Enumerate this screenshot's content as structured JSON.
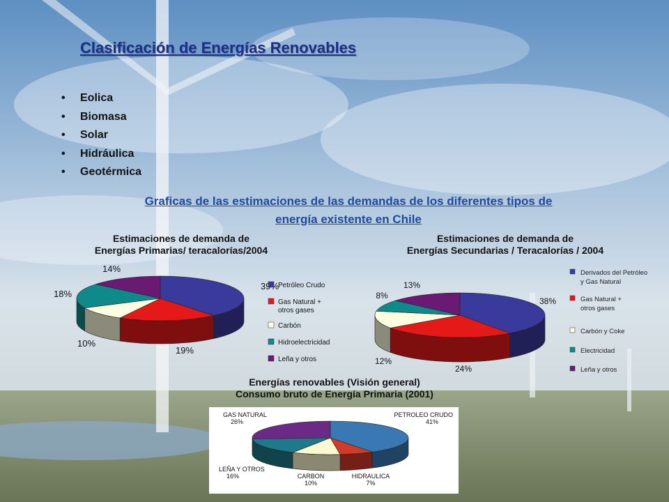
{
  "title": "Clasificación de Energías Renovables",
  "bullets": [
    "Eolica",
    "Biomasa",
    "Solar",
    "Hidráulica",
    "Geotérmica"
  ],
  "subtitle_line1": "Graficas de las estimaciones de las demandas de los diferentes tipos de",
  "subtitle_line2": "energía existente en Chile",
  "colors": {
    "title": "#1a2f8a",
    "subtitle": "#1f4aa0"
  },
  "chart_data": [
    {
      "type": "pie",
      "title_line1": "Estimaciones de demanda de",
      "title_line2": "Energías Primarias/ teracalorías/2004",
      "legend_placement": "right",
      "slices": [
        {
          "name": "Petróleo Crudo",
          "value": 39,
          "label": "39%",
          "color": "#3a3a9c"
        },
        {
          "name": "Gas Natural + otros gases",
          "value": 19,
          "label": "19%",
          "color": "#e61919"
        },
        {
          "name": "Carbón",
          "value": 10,
          "label": "10%",
          "color": "#fdfde0"
        },
        {
          "name": "Hidroelectricidad",
          "value": 18,
          "label": "18%",
          "color": "#0e8a8a"
        },
        {
          "name": "Leña y otros",
          "value": 14,
          "label": "14%",
          "color": "#6a1a72"
        }
      ]
    },
    {
      "type": "pie",
      "title_line1": "Estimaciones de demanda de",
      "title_line2": "Energías Secundarias / Teracalorías / 2004",
      "legend_placement": "right",
      "slices": [
        {
          "name": "Derivados del Petróleo y Gas Natural",
          "value": 38,
          "label": "38%",
          "color": "#3a3a9c"
        },
        {
          "name": "Gas Natural + otros gases",
          "value": 24,
          "label": "24%",
          "color": "#e61919"
        },
        {
          "name": "Carbón y Coke",
          "value": 12,
          "label": "12%",
          "color": "#fdfde0"
        },
        {
          "name": "Electricidad",
          "value": 8,
          "label": "8%",
          "color": "#0e8a8a"
        },
        {
          "name": "Leña y otros",
          "value": 13,
          "label": "13%",
          "color": "#6a1a72"
        }
      ]
    },
    {
      "type": "pie",
      "title_line1": "Energías renovables (Visión general)",
      "title_line2": "Consumo bruto de Energía Primaria (2001)",
      "slices": [
        {
          "name": "PETROLEO CRUDO",
          "value": 41,
          "label": "41%",
          "color": "#3a78b4"
        },
        {
          "name": "HIDRAULICA",
          "value": 7,
          "label": "7%",
          "color": "#d23a2a"
        },
        {
          "name": "CARBON",
          "value": 10,
          "label": "10%",
          "color": "#fcf8d0"
        },
        {
          "name": "LEÑA Y OTROS",
          "value": 16,
          "label": "16%",
          "color": "#1e7a8a"
        },
        {
          "name": "GAS NATURAL",
          "value": 26,
          "label": "26%",
          "color": "#6a2a86"
        }
      ]
    }
  ]
}
